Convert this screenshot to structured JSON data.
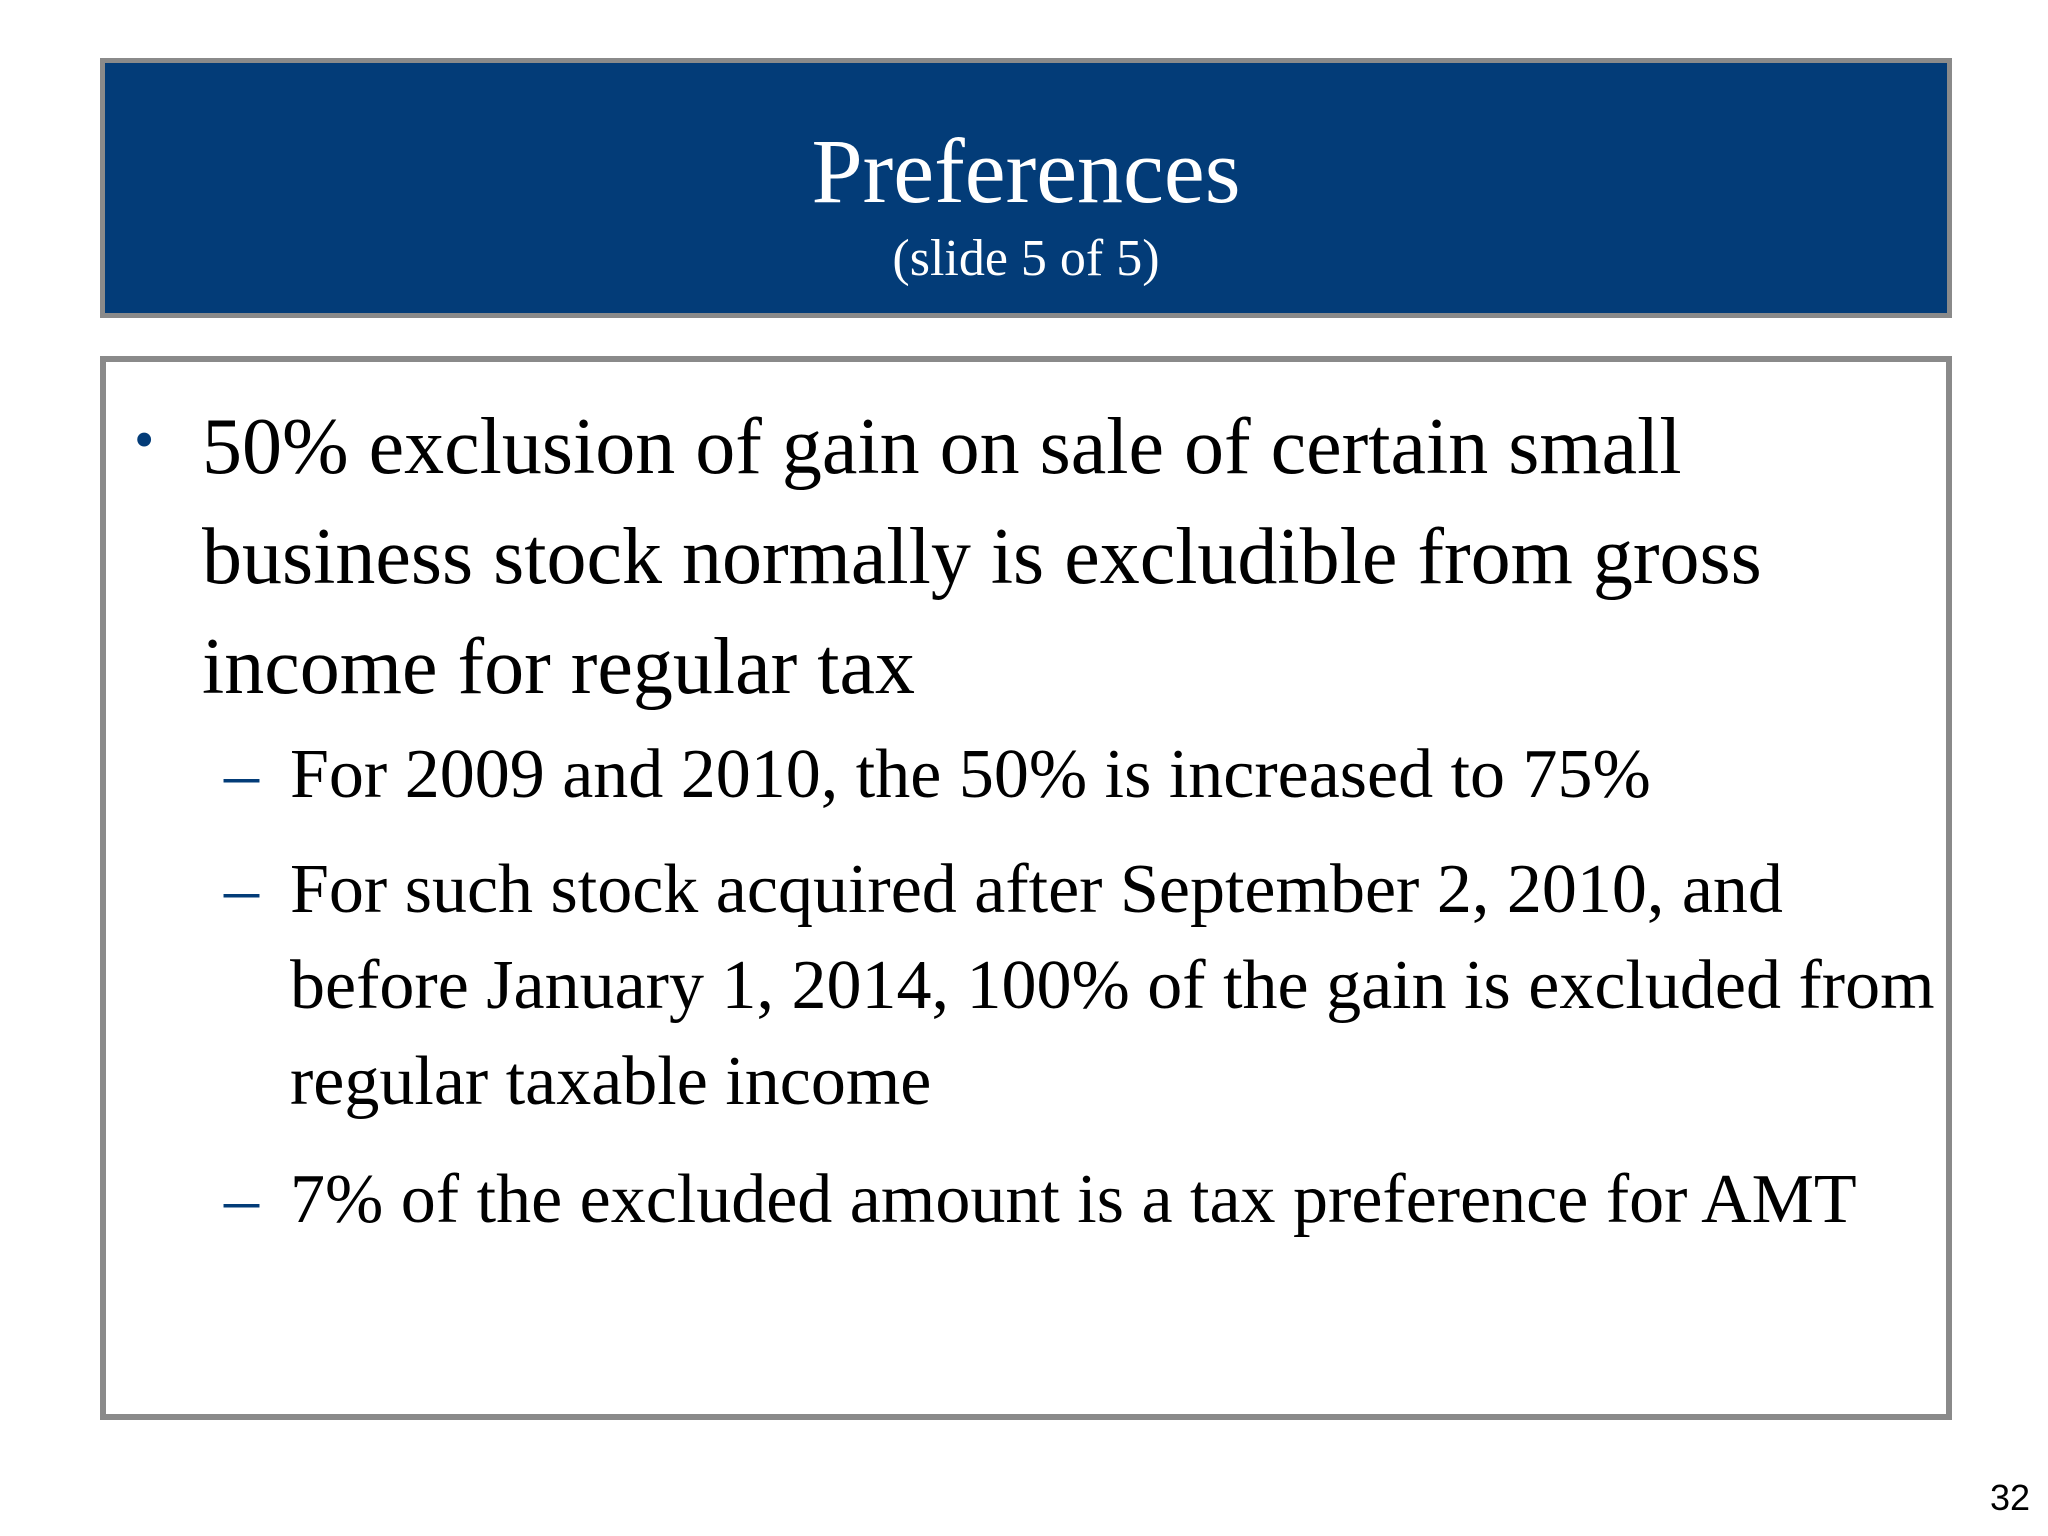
{
  "title": "Preferences",
  "subtitle": "(slide 5 of 5)",
  "bullet": {
    "text": "50% exclusion of gain on sale of certain small business stock normally is excludible from gross income for regular tax"
  },
  "sub_bullets": [
    {
      "text": "For 2009 and 2010, the 50% is increased to 75%"
    },
    {
      "text": "For such stock acquired after September 2, 2010, and before January 1, 2014, 100% of the gain is excluded from regular taxable income"
    },
    {
      "text": "7% of the excluded amount is a tax preference for AMT"
    }
  ],
  "page_number": "32",
  "colors": {
    "title_bg": "#033c78",
    "border": "#8a8a8a",
    "bullet": "#033c78"
  }
}
